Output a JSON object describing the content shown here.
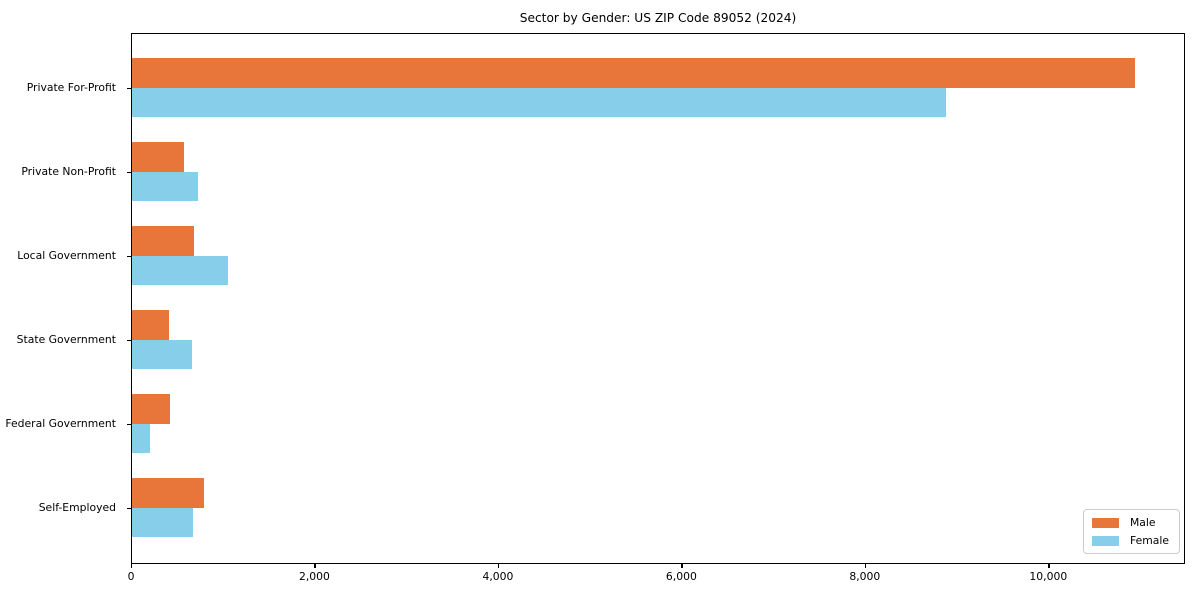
{
  "chart_data": {
    "type": "bar",
    "orientation": "horizontal",
    "title": "Sector by Gender: US ZIP Code 89052 (2024)",
    "xlabel": "",
    "ylabel": "",
    "grid": false,
    "categories": [
      "Private For-Profit",
      "Private Non-Profit",
      "Local Government",
      "State Government",
      "Federal Government",
      "Self-Employed"
    ],
    "series": [
      {
        "name": "Male",
        "color": "#e8763b",
        "values": [
          10940,
          580,
          690,
          410,
          425,
          795
        ]
      },
      {
        "name": "Female",
        "color": "#87ceeb",
        "values": [
          8885,
          735,
          1060,
          660,
          205,
          680
        ]
      }
    ],
    "xlim": [
      0,
      11490
    ],
    "x_ticks": [
      {
        "value": 0,
        "label": "0"
      },
      {
        "value": 2000,
        "label": "2,000"
      },
      {
        "value": 4000,
        "label": "4,000"
      },
      {
        "value": 6000,
        "label": "6,000"
      },
      {
        "value": 8000,
        "label": "8,000"
      },
      {
        "value": 10000,
        "label": "10,000"
      }
    ],
    "legend": {
      "position": "lower right"
    },
    "colors": {
      "spine": "#000000",
      "background": "#ffffff",
      "legend_border": "#cccccc"
    }
  }
}
